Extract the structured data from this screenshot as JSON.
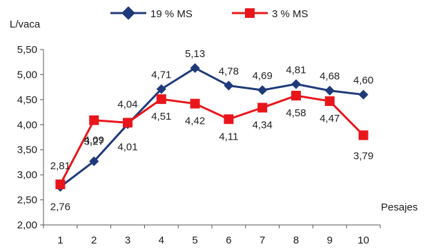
{
  "chart_data": {
    "type": "line",
    "ylabel": "L/vaca",
    "xlabel": "Pesajes",
    "ylim": [
      2.0,
      5.5
    ],
    "yticks": [
      "2,00",
      "2,50",
      "3,00",
      "3,50",
      "4,00",
      "4,50",
      "5,00",
      "5,50"
    ],
    "categories": [
      "1",
      "2",
      "3",
      "4",
      "5",
      "6",
      "7",
      "8",
      "9",
      "10"
    ],
    "grid": false,
    "legend_position": "top",
    "series": [
      {
        "name": "19 % MS",
        "color": "#1f3a7a",
        "marker": "diamond",
        "values": [
          2.76,
          3.27,
          4.01,
          4.71,
          5.13,
          4.78,
          4.69,
          4.81,
          4.68,
          4.6
        ],
        "labels": [
          "2,76",
          "3,27",
          "4,01",
          "4,71",
          "5,13",
          "4,78",
          "4,69",
          "4,81",
          "4,68",
          "4,60"
        ]
      },
      {
        "name": "3 % MS",
        "color": "#e8161b",
        "marker": "square",
        "values": [
          2.81,
          4.09,
          4.04,
          4.51,
          4.42,
          4.11,
          4.34,
          4.58,
          4.47,
          3.79
        ],
        "labels": [
          "2,81",
          "4,09",
          "4,04",
          "4,51",
          "4,42",
          "4,11",
          "4,34",
          "4,58",
          "4,47",
          "3,79"
        ]
      }
    ]
  }
}
